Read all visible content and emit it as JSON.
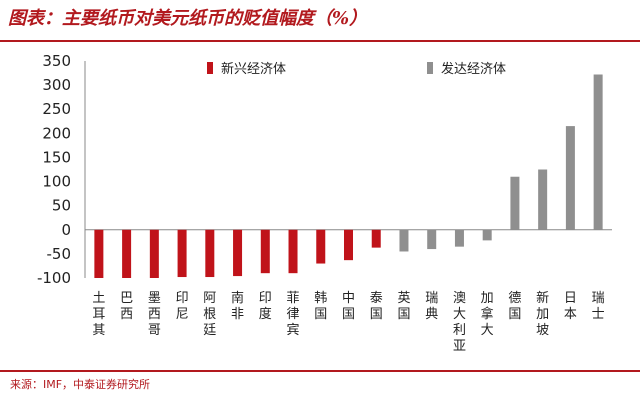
{
  "title": "图表：主要纸币对美元纸币的贬值幅度（%）",
  "source": "来源：IMF，中泰证券研究所",
  "colors": {
    "emerging": "#c0131a",
    "developed": "#8f8f8f",
    "accent": "#b2191e"
  },
  "chart_data": {
    "type": "bar",
    "title": "图表：主要纸币对美元纸币的贬值幅度（%）",
    "xlabel": "",
    "ylabel": "",
    "ylim": [
      -100,
      350
    ],
    "yticks": [
      350,
      300,
      250,
      200,
      150,
      100,
      50,
      0,
      -50,
      -100
    ],
    "grid": false,
    "legend_position": "top",
    "categories": [
      "土耳其",
      "巴西",
      "墨西哥",
      "印尼",
      "阿根廷",
      "南非",
      "印度",
      "菲律宾",
      "韩国",
      "中国",
      "泰国",
      "英国",
      "瑞典",
      "澳大利亚",
      "加拿大",
      "德国",
      "新加坡",
      "日本",
      "瑞士"
    ],
    "series": [
      {
        "name": "新兴经济体",
        "color": "#c0131a",
        "values": [
          -100,
          -100,
          -100,
          -98,
          -98,
          -96,
          -90,
          -90,
          -70,
          -63,
          -37,
          null,
          null,
          null,
          null,
          null,
          null,
          null,
          null
        ]
      },
      {
        "name": "发达经济体",
        "color": "#8f8f8f",
        "values": [
          null,
          null,
          null,
          null,
          null,
          null,
          null,
          null,
          null,
          null,
          null,
          -45,
          -40,
          -35,
          -22,
          110,
          125,
          215,
          322
        ]
      }
    ]
  }
}
